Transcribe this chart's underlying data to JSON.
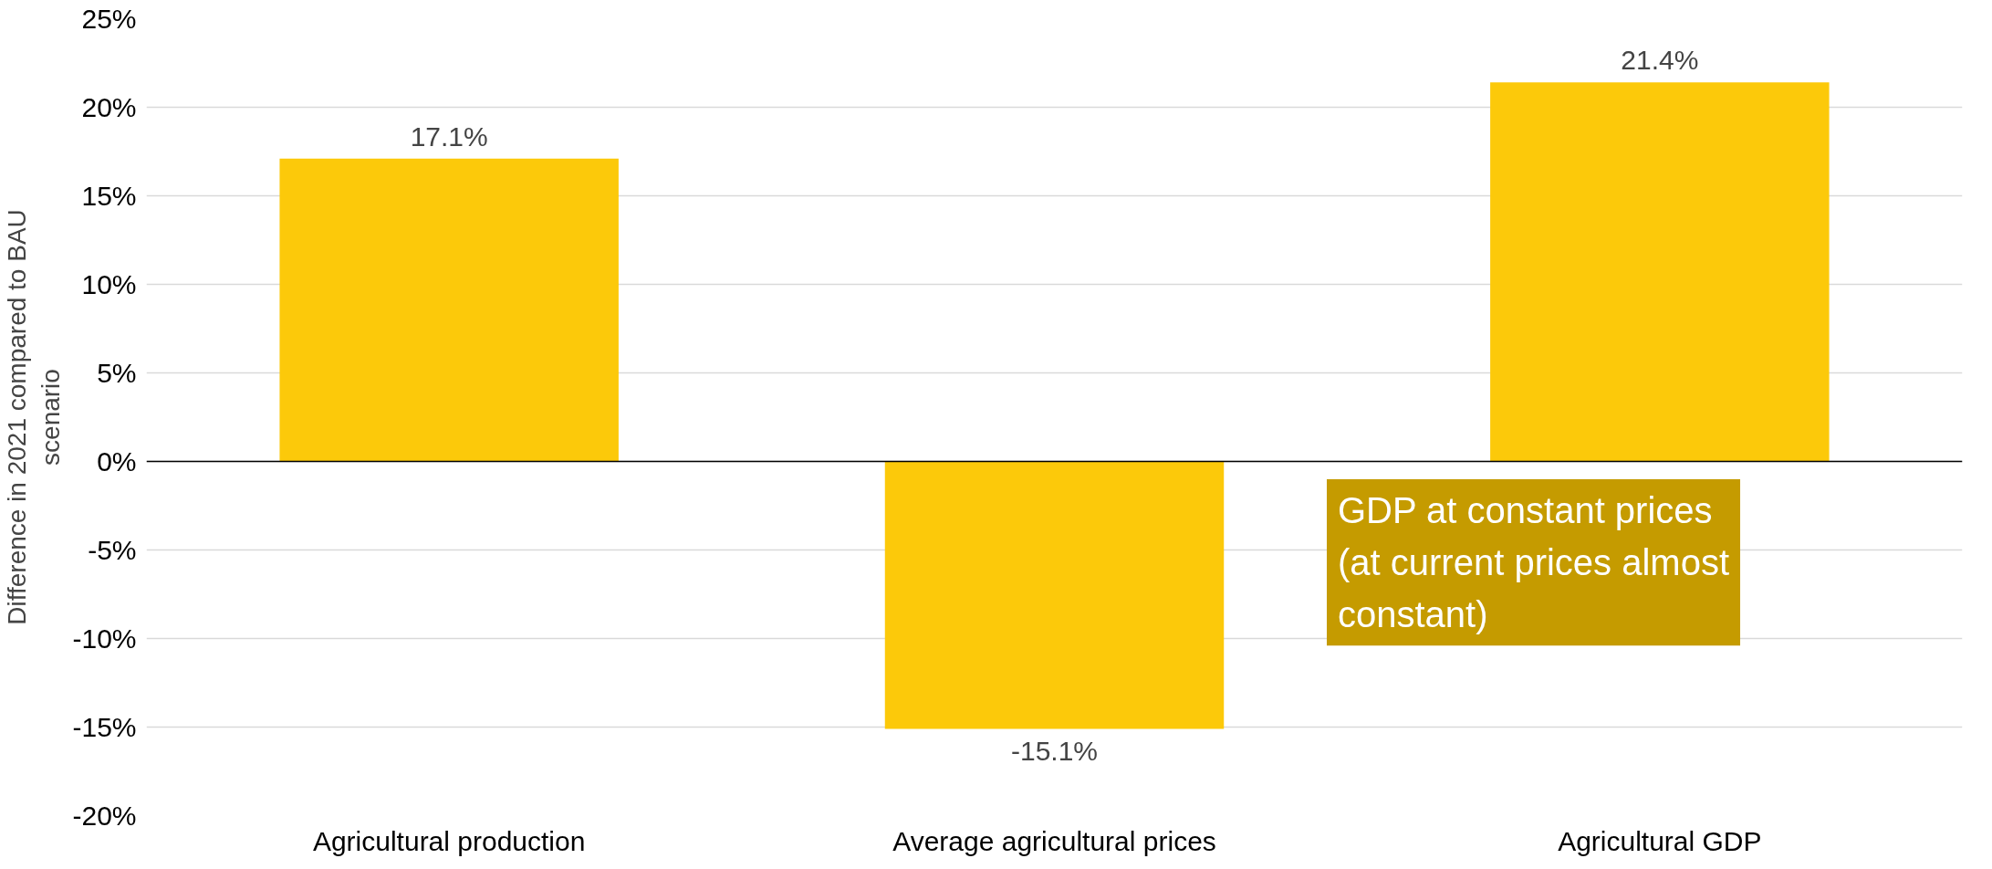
{
  "chart_data": {
    "type": "bar",
    "ylabel": "Difference in 2021 compared to BAU scenario",
    "categories": [
      "Agricultural production",
      "Average agricultural prices",
      "Agricultural GDP"
    ],
    "values": [
      17.1,
      -15.1,
      21.4
    ],
    "value_labels": [
      "17.1%",
      "-15.1%",
      "21.4%"
    ],
    "color": "#fcc90a",
    "ylim": [
      -20,
      25
    ],
    "yticks": [
      {
        "value": -20,
        "label": "-20%"
      },
      {
        "value": -15,
        "label": "-15%"
      },
      {
        "value": -10,
        "label": "-10%"
      },
      {
        "value": -5,
        "label": "-5%"
      },
      {
        "value": 0,
        "label": "0%"
      },
      {
        "value": 5,
        "label": "5%"
      },
      {
        "value": 10,
        "label": "10%"
      },
      {
        "value": 15,
        "label": "15%"
      },
      {
        "value": 20,
        "label": "20%"
      },
      {
        "value": 25,
        "label": "25%"
      }
    ],
    "grid": "y",
    "ref_lines": [
      {
        "axis": "y",
        "value": 0,
        "color": "#000000"
      }
    ],
    "annotations": [
      "GDP at constant prices (at current prices almost constant)"
    ]
  }
}
